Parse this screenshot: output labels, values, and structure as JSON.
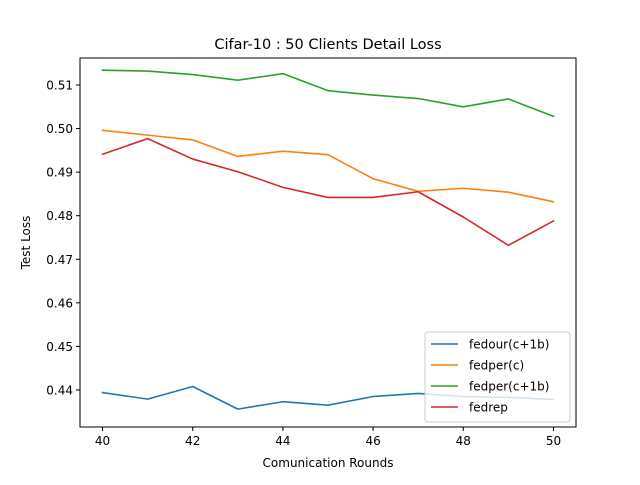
{
  "chart_data": {
    "type": "line",
    "title": "Cifar-10 : 50 Clients Detail Loss",
    "xlabel": "Comunication Rounds",
    "ylabel": "Test Loss",
    "x": [
      40,
      41,
      42,
      43,
      44,
      45,
      46,
      47,
      48,
      49,
      50
    ],
    "xlim": [
      39.5,
      50.5
    ],
    "ylim": [
      0.4315,
      0.5162
    ],
    "xticks": [
      40,
      42,
      44,
      46,
      48,
      50
    ],
    "xtick_labels": [
      "40",
      "42",
      "44",
      "46",
      "48",
      "50"
    ],
    "yticks": [
      0.44,
      0.45,
      0.46,
      0.47,
      0.48,
      0.49,
      0.5,
      0.51
    ],
    "ytick_labels": [
      "0.44",
      "0.45",
      "0.46",
      "0.47",
      "0.48",
      "0.49",
      "0.50",
      "0.51"
    ],
    "grid": false,
    "legend_position": "bottom-right",
    "series": [
      {
        "name": "fedour(c+1b)",
        "color": "#1f77b4",
        "values": [
          0.4394,
          0.4379,
          0.4408,
          0.4356,
          0.4373,
          0.4365,
          0.4385,
          0.4392,
          0.4385,
          0.4383,
          0.4378
        ]
      },
      {
        "name": "fedper(c)",
        "color": "#ff7f0e",
        "values": [
          0.4996,
          0.4985,
          0.4974,
          0.4936,
          0.4948,
          0.494,
          0.4885,
          0.4856,
          0.4863,
          0.4854,
          0.4832
        ]
      },
      {
        "name": "fedper(c+1b)",
        "color": "#2ca02c",
        "values": [
          0.5134,
          0.5132,
          0.5124,
          0.5111,
          0.5126,
          0.5087,
          0.5077,
          0.5069,
          0.505,
          0.5068,
          0.5028
        ]
      },
      {
        "name": "fedrep",
        "color": "#d62728",
        "values": [
          0.4941,
          0.4977,
          0.493,
          0.4901,
          0.4865,
          0.4842,
          0.4842,
          0.4855,
          0.4797,
          0.4732,
          0.4788
        ]
      }
    ]
  }
}
